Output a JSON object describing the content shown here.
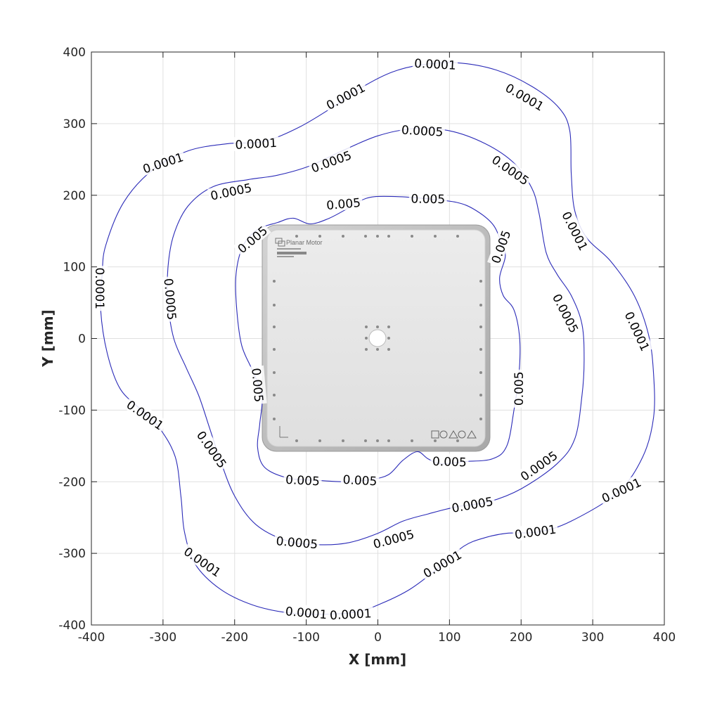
{
  "chart_data": {
    "type": "contour",
    "xlabel": "X [mm]",
    "ylabel": "Y [mm]",
    "xlim": [
      -400,
      400
    ],
    "ylim": [
      -400,
      400
    ],
    "xticks": [
      -400,
      -300,
      -200,
      -100,
      0,
      100,
      200,
      300,
      400
    ],
    "yticks": [
      -400,
      -300,
      -200,
      -100,
      0,
      100,
      200,
      300,
      400
    ],
    "grid": true,
    "line_color": "#2b2bb8",
    "levels": [
      {
        "level": "0.0001",
        "path": [
          [
            -380,
            130
          ],
          [
            -355,
            190
          ],
          [
            -315,
            235
          ],
          [
            -265,
            262
          ],
          [
            -210,
            272
          ],
          [
            -160,
            275
          ],
          [
            -110,
            295
          ],
          [
            -60,
            325
          ],
          [
            -20,
            352
          ],
          [
            20,
            372
          ],
          [
            60,
            382
          ],
          [
            110,
            385
          ],
          [
            165,
            375
          ],
          [
            215,
            352
          ],
          [
            253,
            322
          ],
          [
            268,
            290
          ],
          [
            270,
            230
          ],
          [
            275,
            178
          ],
          [
            292,
            140
          ],
          [
            325,
            108
          ],
          [
            358,
            60
          ],
          [
            378,
            5
          ],
          [
            385,
            -50
          ],
          [
            385,
            -110
          ],
          [
            370,
            -165
          ],
          [
            335,
            -215
          ],
          [
            270,
            -255
          ],
          [
            225,
            -270
          ],
          [
            180,
            -272
          ],
          [
            150,
            -278
          ],
          [
            120,
            -290
          ],
          [
            85,
            -320
          ],
          [
            45,
            -350
          ],
          [
            5,
            -370
          ],
          [
            -30,
            -382
          ],
          [
            -75,
            -385
          ],
          [
            -125,
            -383
          ],
          [
            -175,
            -372
          ],
          [
            -220,
            -350
          ],
          [
            -255,
            -315
          ],
          [
            -270,
            -270
          ],
          [
            -275,
            -220
          ],
          [
            -283,
            -165
          ],
          [
            -305,
            -125
          ],
          [
            -330,
            -100
          ],
          [
            -360,
            -70
          ],
          [
            -378,
            -20
          ],
          [
            -387,
            40
          ],
          [
            -385,
            90
          ],
          [
            -380,
            130
          ]
        ],
        "labels": [
          {
            "x": -300,
            "y": 245,
            "angle": -18
          },
          {
            "x": -170,
            "y": 272,
            "angle": -3
          },
          {
            "x": -45,
            "y": 338,
            "angle": -28
          },
          {
            "x": 80,
            "y": 383,
            "angle": 3
          },
          {
            "x": 205,
            "y": 337,
            "angle": 30
          },
          {
            "x": 275,
            "y": 150,
            "angle": 63
          },
          {
            "x": 362,
            "y": 10,
            "angle": 65
          },
          {
            "x": 340,
            "y": -212,
            "angle": -25
          },
          {
            "x": 220,
            "y": -270,
            "angle": -8
          },
          {
            "x": 90,
            "y": -315,
            "angle": -30
          },
          {
            "x": -38,
            "y": -385,
            "angle": -3
          },
          {
            "x": -100,
            "y": -383,
            "angle": 5
          },
          {
            "x": -245,
            "y": -312,
            "angle": 35
          },
          {
            "x": -325,
            "y": -107,
            "angle": 35
          },
          {
            "x": -388,
            "y": 70,
            "angle": 90
          }
        ]
      },
      {
        "level": "0.0005",
        "path": [
          [
            -285,
            145
          ],
          [
            -265,
            185
          ],
          [
            -230,
            212
          ],
          [
            -180,
            222
          ],
          [
            -140,
            228
          ],
          [
            -95,
            241
          ],
          [
            -50,
            262
          ],
          [
            0,
            283
          ],
          [
            50,
            293
          ],
          [
            100,
            290
          ],
          [
            150,
            272
          ],
          [
            190,
            245
          ],
          [
            215,
            210
          ],
          [
            225,
            175
          ],
          [
            235,
            120
          ],
          [
            250,
            90
          ],
          [
            270,
            60
          ],
          [
            285,
            20
          ],
          [
            288,
            -30
          ],
          [
            285,
            -80
          ],
          [
            275,
            -140
          ],
          [
            250,
            -175
          ],
          [
            200,
            -210
          ],
          [
            155,
            -228
          ],
          [
            110,
            -235
          ],
          [
            70,
            -245
          ],
          [
            35,
            -255
          ],
          [
            0,
            -272
          ],
          [
            -40,
            -285
          ],
          [
            -80,
            -288
          ],
          [
            -125,
            -283
          ],
          [
            -170,
            -260
          ],
          [
            -200,
            -220
          ],
          [
            -220,
            -170
          ],
          [
            -235,
            -125
          ],
          [
            -250,
            -80
          ],
          [
            -268,
            -40
          ],
          [
            -285,
            0
          ],
          [
            -293,
            50
          ],
          [
            -293,
            100
          ],
          [
            -285,
            145
          ]
        ],
        "labels": [
          {
            "x": -205,
            "y": 205,
            "angle": -12
          },
          {
            "x": -65,
            "y": 247,
            "angle": -20
          },
          {
            "x": 62,
            "y": 290,
            "angle": 3
          },
          {
            "x": 185,
            "y": 235,
            "angle": 35
          },
          {
            "x": 262,
            "y": 35,
            "angle": 63
          },
          {
            "x": 225,
            "y": -178,
            "angle": -35
          },
          {
            "x": 132,
            "y": -232,
            "angle": -10
          },
          {
            "x": 22,
            "y": -280,
            "angle": -15
          },
          {
            "x": -113,
            "y": -285,
            "angle": 5
          },
          {
            "x": -232,
            "y": -155,
            "angle": 55
          },
          {
            "x": -290,
            "y": 55,
            "angle": 85
          }
        ]
      },
      {
        "level": "0.005",
        "path": [
          [
            -165,
            -120
          ],
          [
            -162,
            -80
          ],
          [
            -175,
            -45
          ],
          [
            -190,
            -10
          ],
          [
            -197,
            40
          ],
          [
            -198,
            90
          ],
          [
            -188,
            130
          ],
          [
            -168,
            152
          ],
          [
            -140,
            162
          ],
          [
            -118,
            168
          ],
          [
            -95,
            160
          ],
          [
            -70,
            167
          ],
          [
            -45,
            180
          ],
          [
            -25,
            192
          ],
          [
            -5,
            198
          ],
          [
            30,
            198
          ],
          [
            70,
            195
          ],
          [
            110,
            190
          ],
          [
            135,
            180
          ],
          [
            160,
            160
          ],
          [
            172,
            135
          ],
          [
            178,
            115
          ],
          [
            170,
            85
          ],
          [
            175,
            60
          ],
          [
            190,
            40
          ],
          [
            198,
            0
          ],
          [
            197,
            -50
          ],
          [
            190,
            -100
          ],
          [
            180,
            -150
          ],
          [
            160,
            -168
          ],
          [
            120,
            -172
          ],
          [
            88,
            -175
          ],
          [
            70,
            -168
          ],
          [
            55,
            -158
          ],
          [
            35,
            -170
          ],
          [
            15,
            -190
          ],
          [
            -10,
            -197
          ],
          [
            -45,
            -200
          ],
          [
            -85,
            -198
          ],
          [
            -125,
            -195
          ],
          [
            -158,
            -180
          ],
          [
            -168,
            -152
          ],
          [
            -165,
            -120
          ]
        ],
        "labels": [
          {
            "x": -175,
            "y": 138,
            "angle": -40
          },
          {
            "x": -48,
            "y": 188,
            "angle": -5
          },
          {
            "x": 70,
            "y": 195,
            "angle": 1
          },
          {
            "x": 172,
            "y": 128,
            "angle": -70
          },
          {
            "x": 197,
            "y": -70,
            "angle": -90
          },
          {
            "x": 100,
            "y": -172,
            "angle": 2
          },
          {
            "x": -25,
            "y": -198,
            "angle": 3
          },
          {
            "x": -105,
            "y": -198,
            "angle": 3
          },
          {
            "x": -168,
            "y": -65,
            "angle": 85
          }
        ]
      }
    ]
  },
  "product": {
    "brand": "Planar Motor"
  }
}
